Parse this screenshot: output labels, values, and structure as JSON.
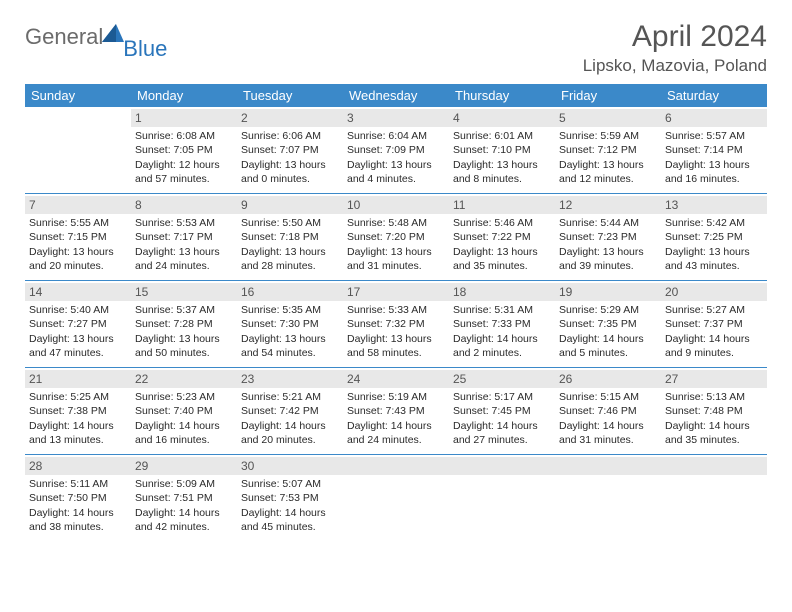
{
  "logo": {
    "general": "General",
    "blue": "Blue"
  },
  "title": "April 2024",
  "location": "Lipsko, Mazovia, Poland",
  "colors": {
    "header_bg": "#3b89c9",
    "header_fg": "#ffffff",
    "daynum_bg": "#e8e8e8",
    "divider": "#3b89c9",
    "logo_gray": "#6b6b6b",
    "logo_blue": "#2a75bb"
  },
  "weekdays": [
    "Sunday",
    "Monday",
    "Tuesday",
    "Wednesday",
    "Thursday",
    "Friday",
    "Saturday"
  ],
  "weeks": [
    [
      null,
      {
        "n": "1",
        "sr": "Sunrise: 6:08 AM",
        "ss": "Sunset: 7:05 PM",
        "d1": "Daylight: 12 hours",
        "d2": "and 57 minutes."
      },
      {
        "n": "2",
        "sr": "Sunrise: 6:06 AM",
        "ss": "Sunset: 7:07 PM",
        "d1": "Daylight: 13 hours",
        "d2": "and 0 minutes."
      },
      {
        "n": "3",
        "sr": "Sunrise: 6:04 AM",
        "ss": "Sunset: 7:09 PM",
        "d1": "Daylight: 13 hours",
        "d2": "and 4 minutes."
      },
      {
        "n": "4",
        "sr": "Sunrise: 6:01 AM",
        "ss": "Sunset: 7:10 PM",
        "d1": "Daylight: 13 hours",
        "d2": "and 8 minutes."
      },
      {
        "n": "5",
        "sr": "Sunrise: 5:59 AM",
        "ss": "Sunset: 7:12 PM",
        "d1": "Daylight: 13 hours",
        "d2": "and 12 minutes."
      },
      {
        "n": "6",
        "sr": "Sunrise: 5:57 AM",
        "ss": "Sunset: 7:14 PM",
        "d1": "Daylight: 13 hours",
        "d2": "and 16 minutes."
      }
    ],
    [
      {
        "n": "7",
        "sr": "Sunrise: 5:55 AM",
        "ss": "Sunset: 7:15 PM",
        "d1": "Daylight: 13 hours",
        "d2": "and 20 minutes."
      },
      {
        "n": "8",
        "sr": "Sunrise: 5:53 AM",
        "ss": "Sunset: 7:17 PM",
        "d1": "Daylight: 13 hours",
        "d2": "and 24 minutes."
      },
      {
        "n": "9",
        "sr": "Sunrise: 5:50 AM",
        "ss": "Sunset: 7:18 PM",
        "d1": "Daylight: 13 hours",
        "d2": "and 28 minutes."
      },
      {
        "n": "10",
        "sr": "Sunrise: 5:48 AM",
        "ss": "Sunset: 7:20 PM",
        "d1": "Daylight: 13 hours",
        "d2": "and 31 minutes."
      },
      {
        "n": "11",
        "sr": "Sunrise: 5:46 AM",
        "ss": "Sunset: 7:22 PM",
        "d1": "Daylight: 13 hours",
        "d2": "and 35 minutes."
      },
      {
        "n": "12",
        "sr": "Sunrise: 5:44 AM",
        "ss": "Sunset: 7:23 PM",
        "d1": "Daylight: 13 hours",
        "d2": "and 39 minutes."
      },
      {
        "n": "13",
        "sr": "Sunrise: 5:42 AM",
        "ss": "Sunset: 7:25 PM",
        "d1": "Daylight: 13 hours",
        "d2": "and 43 minutes."
      }
    ],
    [
      {
        "n": "14",
        "sr": "Sunrise: 5:40 AM",
        "ss": "Sunset: 7:27 PM",
        "d1": "Daylight: 13 hours",
        "d2": "and 47 minutes."
      },
      {
        "n": "15",
        "sr": "Sunrise: 5:37 AM",
        "ss": "Sunset: 7:28 PM",
        "d1": "Daylight: 13 hours",
        "d2": "and 50 minutes."
      },
      {
        "n": "16",
        "sr": "Sunrise: 5:35 AM",
        "ss": "Sunset: 7:30 PM",
        "d1": "Daylight: 13 hours",
        "d2": "and 54 minutes."
      },
      {
        "n": "17",
        "sr": "Sunrise: 5:33 AM",
        "ss": "Sunset: 7:32 PM",
        "d1": "Daylight: 13 hours",
        "d2": "and 58 minutes."
      },
      {
        "n": "18",
        "sr": "Sunrise: 5:31 AM",
        "ss": "Sunset: 7:33 PM",
        "d1": "Daylight: 14 hours",
        "d2": "and 2 minutes."
      },
      {
        "n": "19",
        "sr": "Sunrise: 5:29 AM",
        "ss": "Sunset: 7:35 PM",
        "d1": "Daylight: 14 hours",
        "d2": "and 5 minutes."
      },
      {
        "n": "20",
        "sr": "Sunrise: 5:27 AM",
        "ss": "Sunset: 7:37 PM",
        "d1": "Daylight: 14 hours",
        "d2": "and 9 minutes."
      }
    ],
    [
      {
        "n": "21",
        "sr": "Sunrise: 5:25 AM",
        "ss": "Sunset: 7:38 PM",
        "d1": "Daylight: 14 hours",
        "d2": "and 13 minutes."
      },
      {
        "n": "22",
        "sr": "Sunrise: 5:23 AM",
        "ss": "Sunset: 7:40 PM",
        "d1": "Daylight: 14 hours",
        "d2": "and 16 minutes."
      },
      {
        "n": "23",
        "sr": "Sunrise: 5:21 AM",
        "ss": "Sunset: 7:42 PM",
        "d1": "Daylight: 14 hours",
        "d2": "and 20 minutes."
      },
      {
        "n": "24",
        "sr": "Sunrise: 5:19 AM",
        "ss": "Sunset: 7:43 PM",
        "d1": "Daylight: 14 hours",
        "d2": "and 24 minutes."
      },
      {
        "n": "25",
        "sr": "Sunrise: 5:17 AM",
        "ss": "Sunset: 7:45 PM",
        "d1": "Daylight: 14 hours",
        "d2": "and 27 minutes."
      },
      {
        "n": "26",
        "sr": "Sunrise: 5:15 AM",
        "ss": "Sunset: 7:46 PM",
        "d1": "Daylight: 14 hours",
        "d2": "and 31 minutes."
      },
      {
        "n": "27",
        "sr": "Sunrise: 5:13 AM",
        "ss": "Sunset: 7:48 PM",
        "d1": "Daylight: 14 hours",
        "d2": "and 35 minutes."
      }
    ],
    [
      {
        "n": "28",
        "sr": "Sunrise: 5:11 AM",
        "ss": "Sunset: 7:50 PM",
        "d1": "Daylight: 14 hours",
        "d2": "and 38 minutes."
      },
      {
        "n": "29",
        "sr": "Sunrise: 5:09 AM",
        "ss": "Sunset: 7:51 PM",
        "d1": "Daylight: 14 hours",
        "d2": "and 42 minutes."
      },
      {
        "n": "30",
        "sr": "Sunrise: 5:07 AM",
        "ss": "Sunset: 7:53 PM",
        "d1": "Daylight: 14 hours",
        "d2": "and 45 minutes."
      },
      null,
      null,
      null,
      null
    ]
  ]
}
